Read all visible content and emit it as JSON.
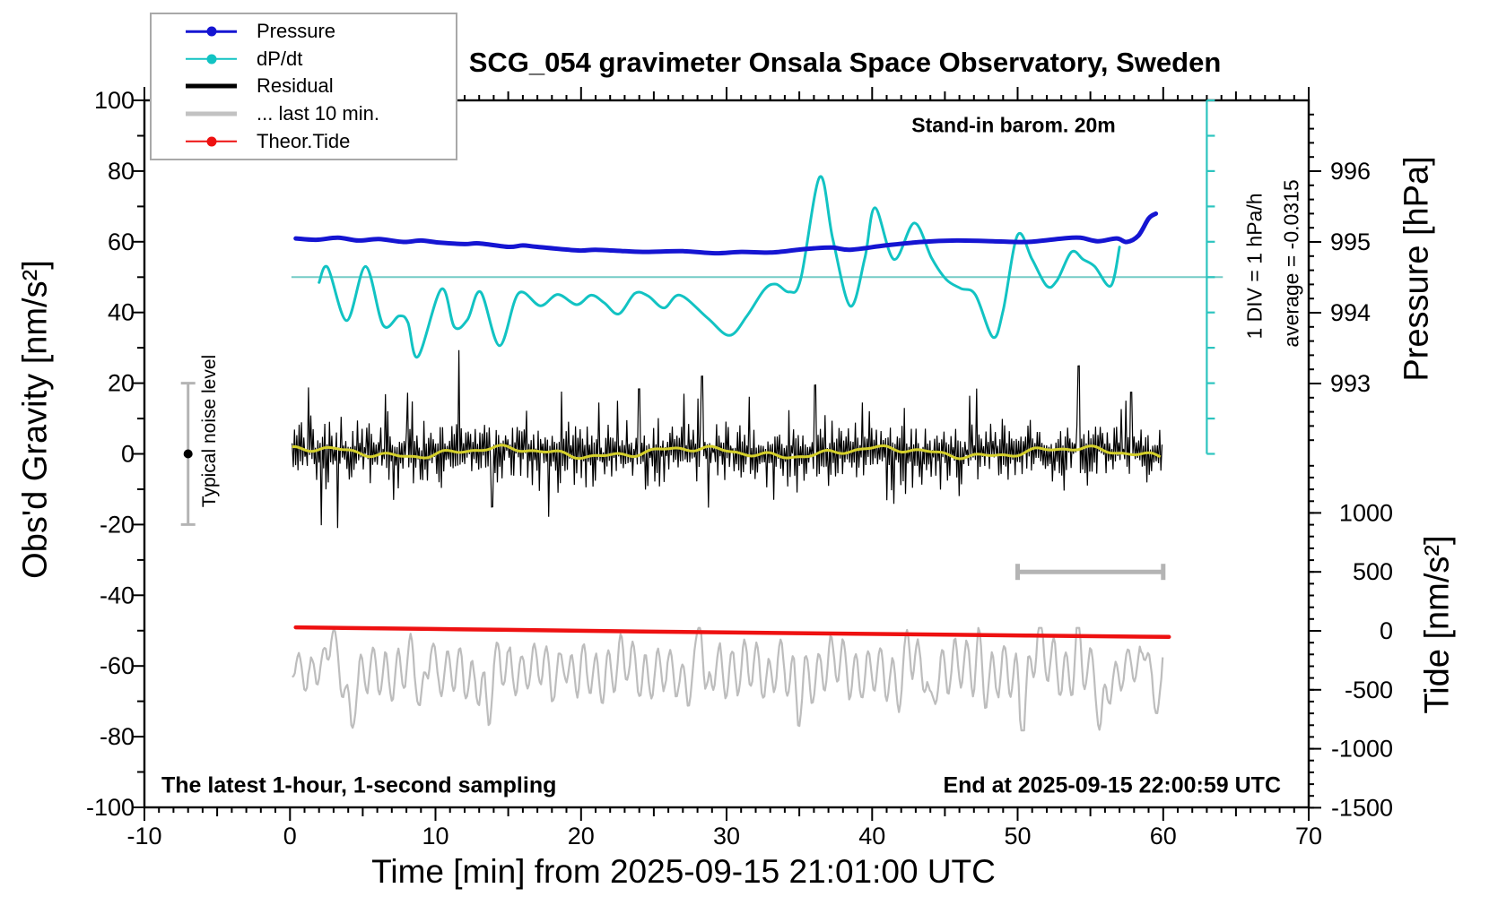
{
  "title": "SCG_054 gravimeter Onsala Space Observatory, Sweden",
  "annotations": {
    "stand_in": "Stand-in barom. 20m",
    "div_scale": "1 DIV = 1 hPa/h",
    "average": "average = -0.0315",
    "noise_level": "Typical noise level",
    "sampling_note": "The latest 1-hour, 1-second sampling",
    "end_note": "End at 2025-09-15 22:00:59 UTC"
  },
  "legend": {
    "items": [
      {
        "label": "Pressure",
        "color": "#1515d2",
        "dot": true,
        "thick": false
      },
      {
        "label": "dP/dt",
        "color": "#12c3c3",
        "dot": true,
        "thick": false
      },
      {
        "label": "Residual",
        "color": "#000000",
        "dot": false,
        "thick": true
      },
      {
        "label": "... last 10 min.",
        "color": "#c2c2c2",
        "dot": false,
        "thick": true
      },
      {
        "label": "Theor.Tide",
        "color": "#ee1111",
        "dot": true,
        "thick": false
      }
    ]
  },
  "axes": {
    "x": {
      "label": "Time [min] from 2025-09-15 21:01:00 UTC",
      "min": -10,
      "max": 70,
      "ticks": [
        -10,
        0,
        10,
        20,
        30,
        40,
        50,
        60,
        70
      ]
    },
    "gravity": {
      "label": "Obs'd Gravity [nm/s²]",
      "min": -100,
      "max": 100,
      "ticks": [
        100,
        80,
        60,
        40,
        20,
        0,
        -20,
        -40,
        -60,
        -80,
        -100
      ]
    },
    "pressure": {
      "label": "Pressure [hPa]",
      "ticks": [
        996,
        995,
        994,
        993
      ]
    },
    "tide": {
      "label": "Tide [nm/s²]",
      "ticks": [
        1000,
        500,
        0,
        -500,
        -1000,
        -1500
      ]
    }
  },
  "chart_data": {
    "type": "line",
    "title": "SCG_054 gravimeter Onsala Space Observatory, Sweden",
    "xlabel": "Time [min] from 2025-09-15 21:01:00 UTC",
    "x_range": [
      -10,
      70
    ],
    "gravity_range": [
      -100,
      100
    ],
    "series": [
      {
        "name": "Pressure",
        "unit": "hPa",
        "axis": "pressure",
        "color": "#1515d2",
        "width": 5,
        "points": [
          [
            0.4,
            995.05
          ],
          [
            1.8,
            995.03
          ],
          [
            3.3,
            995.06
          ],
          [
            4.7,
            995.02
          ],
          [
            6.1,
            995.04
          ],
          [
            7.8,
            995.0
          ],
          [
            9.0,
            995.02
          ],
          [
            10.3,
            994.99
          ],
          [
            12,
            994.97
          ],
          [
            13,
            994.98
          ],
          [
            15,
            994.93
          ],
          [
            16,
            994.95
          ],
          [
            17,
            994.93
          ],
          [
            19.8,
            994.88
          ],
          [
            21,
            994.89
          ],
          [
            23,
            994.87
          ],
          [
            24.5,
            994.86
          ],
          [
            27,
            994.87
          ],
          [
            29.2,
            994.84
          ],
          [
            31,
            994.86
          ],
          [
            33,
            994.85
          ],
          [
            34.9,
            994.89
          ],
          [
            36,
            994.91
          ],
          [
            37.3,
            994.92
          ],
          [
            38.5,
            994.89
          ],
          [
            40.9,
            994.95
          ],
          [
            43.4,
            995.0
          ],
          [
            45.8,
            995.02
          ],
          [
            48.3,
            995.01
          ],
          [
            50.7,
            995.0
          ],
          [
            53.1,
            995.05
          ],
          [
            54.3,
            995.06
          ],
          [
            55.5,
            995.01
          ],
          [
            56.8,
            995.05
          ],
          [
            57.5,
            995.0
          ],
          [
            58.3,
            995.09
          ],
          [
            59.0,
            995.33
          ],
          [
            59.5,
            995.4
          ]
        ]
      },
      {
        "name": "dP/dt",
        "unit": "hPa/h",
        "axis": "dpdt_ruler",
        "color": "#12c3c3",
        "width": 3,
        "zero_at_gravity": 50,
        "gravity_units_per_div": 10,
        "hPa_per_h_per_div": 1,
        "points": [
          [
            2.0,
            -0.15
          ],
          [
            2.6,
            0.27
          ],
          [
            3.9,
            -1.23
          ],
          [
            5.2,
            0.3
          ],
          [
            6.4,
            -1.36
          ],
          [
            7.5,
            -1.1
          ],
          [
            8.1,
            -1.28
          ],
          [
            8.8,
            -2.25
          ],
          [
            10.4,
            -0.34
          ],
          [
            11.3,
            -1.41
          ],
          [
            12.2,
            -1.2
          ],
          [
            13.1,
            -0.42
          ],
          [
            14.4,
            -1.94
          ],
          [
            15.7,
            -0.46
          ],
          [
            17.2,
            -0.81
          ],
          [
            18.4,
            -0.49
          ],
          [
            19.7,
            -0.78
          ],
          [
            20.7,
            -0.51
          ],
          [
            21.6,
            -0.73
          ],
          [
            22.6,
            -1.04
          ],
          [
            23.7,
            -0.46
          ],
          [
            24.6,
            -0.53
          ],
          [
            25.7,
            -0.87
          ],
          [
            26.8,
            -0.51
          ],
          [
            28.7,
            -1.16
          ],
          [
            30.2,
            -1.65
          ],
          [
            31.4,
            -1.1
          ],
          [
            32.6,
            -0.35
          ],
          [
            33.4,
            -0.2
          ],
          [
            34.3,
            -0.42
          ],
          [
            35.1,
            -0.05
          ],
          [
            36.4,
            2.83
          ],
          [
            37.3,
            1.08
          ],
          [
            38.5,
            -0.82
          ],
          [
            39.5,
            0.53
          ],
          [
            40.2,
            1.96
          ],
          [
            41.5,
            0.5
          ],
          [
            42.9,
            1.53
          ],
          [
            44.1,
            0.53
          ],
          [
            45.1,
            -0.07
          ],
          [
            46.1,
            -0.32
          ],
          [
            47.1,
            -0.5
          ],
          [
            48.3,
            -1.7
          ],
          [
            49.0,
            -0.95
          ],
          [
            50.0,
            1.19
          ],
          [
            51.0,
            0.5
          ],
          [
            52.0,
            -0.25
          ],
          [
            52.7,
            -0.1
          ],
          [
            53.7,
            0.71
          ],
          [
            54.5,
            0.5
          ],
          [
            55.3,
            0.3
          ],
          [
            56.4,
            -0.25
          ],
          [
            57.0,
            0.85
          ]
        ],
        "zero_line": {
          "gravity": 50,
          "t_start": 0.1,
          "t_end": 64.1,
          "color": "#74ccc6"
        },
        "ruler": {
          "t": 63.0,
          "gravity_top": 100,
          "gravity_bottom": 0,
          "tick_step_gravity": 10,
          "color": "#2cc4bf"
        }
      },
      {
        "name": "Residual",
        "axis": "gravity",
        "color": "#000000",
        "width": 1.2,
        "t_start": 0.15,
        "t_end": 60,
        "center": 0.5,
        "sigma": 4.8,
        "seed": 77031,
        "spike_prob": 0.02,
        "spike_base": 8,
        "spike_var": 9,
        "tall_spikes": [
          [
            8.1,
            17
          ],
          [
            13.9,
            -16
          ],
          [
            24.0,
            18
          ],
          [
            28.3,
            21
          ],
          [
            36.1,
            19
          ],
          [
            41.5,
            -15
          ],
          [
            47.2,
            18
          ],
          [
            54.2,
            24
          ],
          [
            57.8,
            17
          ]
        ]
      },
      {
        "name": "Residual smoothed",
        "axis": "gravity",
        "color": "#d4cf2b",
        "width": 3,
        "t_start": 0.15,
        "t_end": 60,
        "center": 0.45,
        "sines": [
          [
            1.15,
            0.48,
            0.9
          ],
          [
            0.55,
            1.7,
            2.1
          ],
          [
            0.35,
            3.1,
            0.3
          ]
        ]
      },
      {
        "name": "... last 10 min.",
        "axis": "tide",
        "color": "#bdbdbd",
        "width": 2.2,
        "t_start": 0.15,
        "t_end": 60,
        "center": -350,
        "seed": 42117,
        "osc": [
          [
            0.85,
            160
          ],
          [
            2.9,
            70
          ],
          [
            7.3,
            45
          ]
        ],
        "jitter": 40,
        "spikes_up": [
          [
            2.9,
            330
          ],
          [
            9.7,
            300
          ],
          [
            18.8,
            280
          ],
          [
            28.2,
            600
          ],
          [
            33.5,
            260
          ],
          [
            42.5,
            330
          ],
          [
            47.3,
            260
          ],
          [
            51.4,
            330
          ],
          [
            54.1,
            300
          ],
          [
            58.9,
            330
          ]
        ],
        "spikes_down": [
          [
            4.2,
            -350
          ],
          [
            9.0,
            -400
          ],
          [
            13.6,
            -380
          ],
          [
            28.6,
            -430
          ],
          [
            34.9,
            -360
          ],
          [
            44.0,
            -380
          ],
          [
            50.3,
            -400
          ],
          [
            55.7,
            -420
          ],
          [
            59.4,
            -380
          ]
        ],
        "clamp": [
          -845,
          25
        ]
      },
      {
        "name": "Theor.Tide",
        "unit": "nm/s²",
        "axis": "tide",
        "color": "#ee1111",
        "width": 4.5,
        "points": [
          [
            0.4,
            30
          ],
          [
            15,
            8
          ],
          [
            30,
            -14
          ],
          [
            45,
            -33
          ],
          [
            60.4,
            -52
          ]
        ]
      }
    ],
    "markers": {
      "noise_marker": {
        "t": -7,
        "gravity_center": 0,
        "gravity_halfspan": 20,
        "bar_color": "#b4b4b4",
        "dot_color": "#000000"
      },
      "scale_bar_10min": {
        "t_start": 50,
        "t_end": 60,
        "tide_level": 500,
        "color": "#b4b4b4"
      }
    }
  }
}
